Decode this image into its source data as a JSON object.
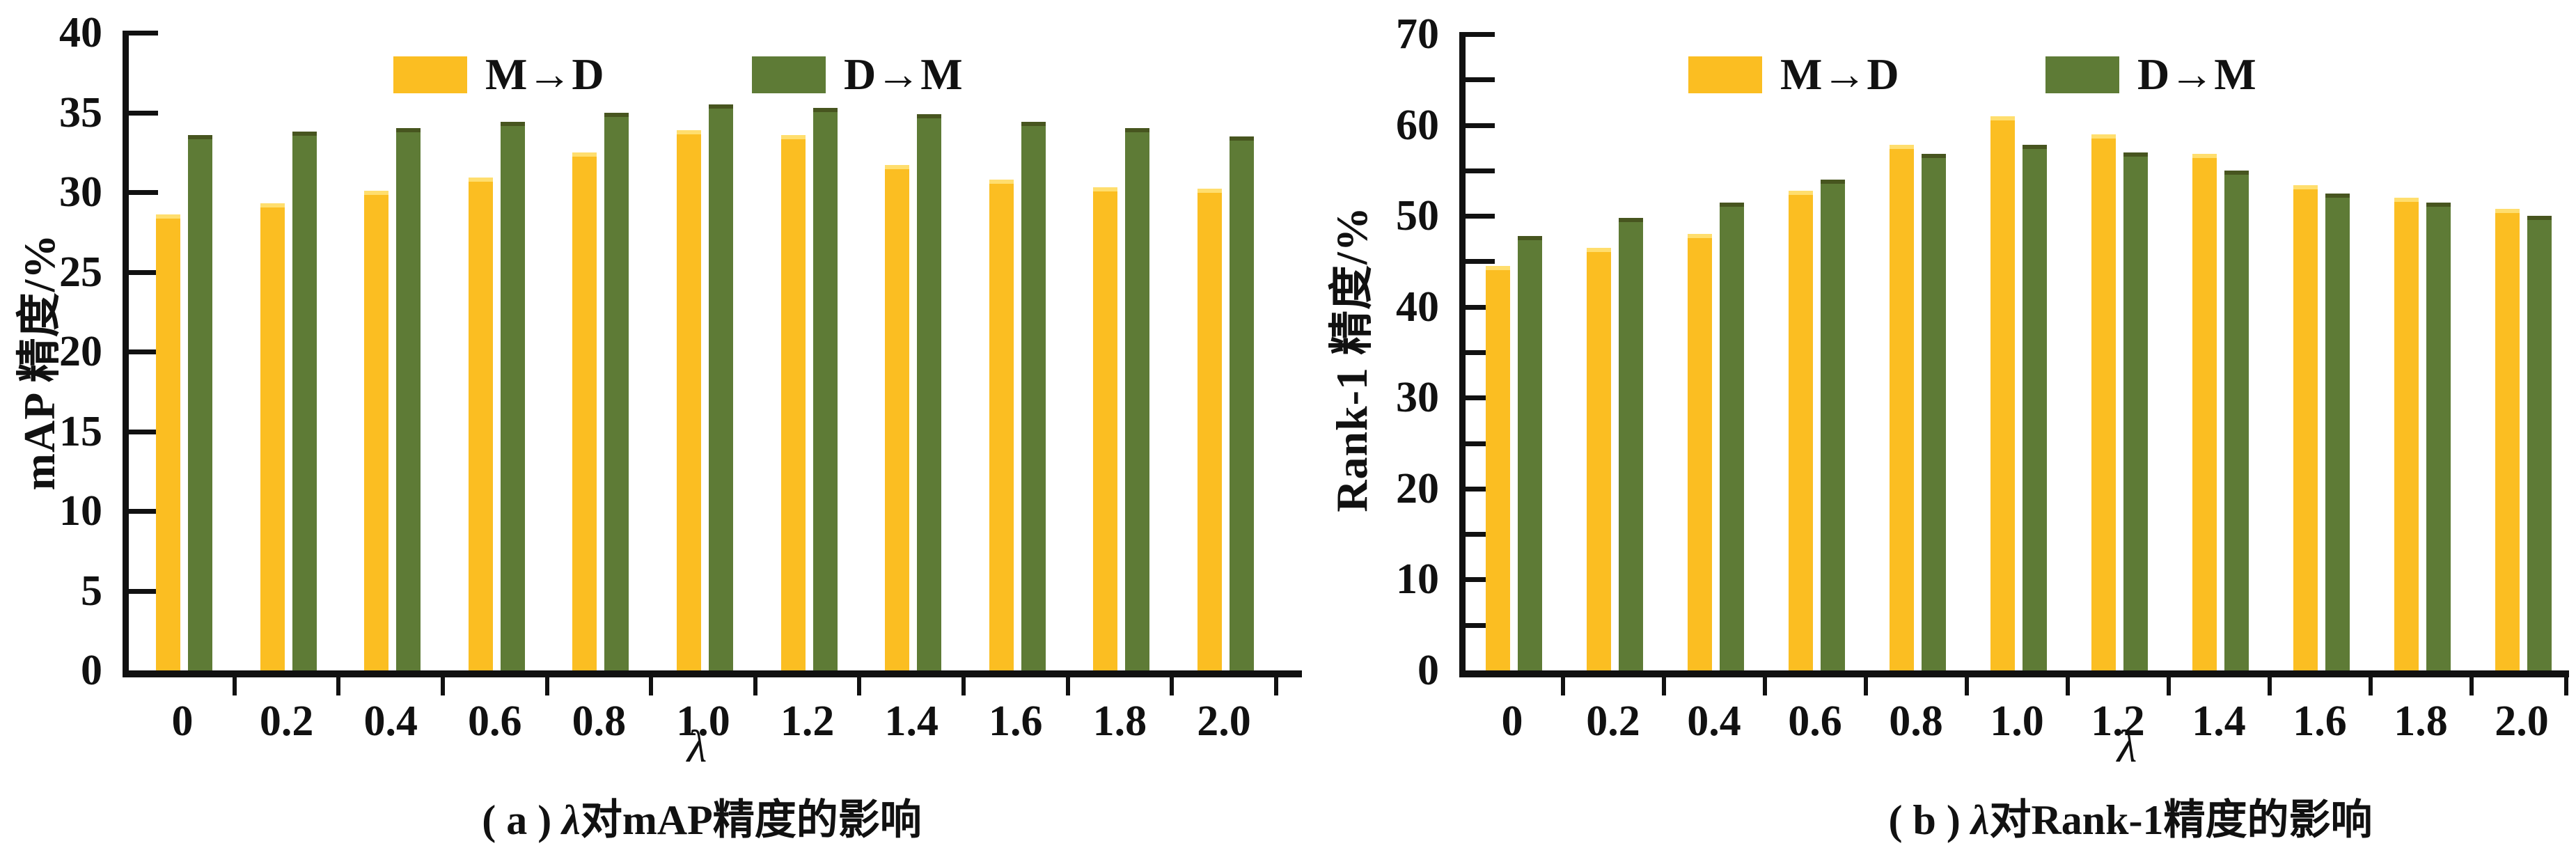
{
  "figure": {
    "background": "#ffffff",
    "text_color": "#111111",
    "series_colors": {
      "m_to_d": "#FBBE22",
      "d_to_m": "#5E7B36"
    },
    "series_edge_colors": {
      "m_to_d": "#FFDE6E",
      "d_to_m": "#47551F"
    }
  },
  "chart_data": [
    {
      "id": "a",
      "type": "bar",
      "caption_prefix": "( a ) ",
      "caption_lambda": "λ",
      "caption_rest": "对mAP精度的影响",
      "xlabel": "λ",
      "ylabel": "mAP 精度/%",
      "ylim": [
        0,
        40
      ],
      "ytick_step": 5,
      "ytick_label_every": 5,
      "grid": false,
      "legend_position": "top-center",
      "categories": [
        "0",
        "0.2",
        "0.4",
        "0.6",
        "0.8",
        "1.0",
        "1.2",
        "1.4",
        "1.6",
        "1.8",
        "2.0"
      ],
      "legend": [
        {
          "label": "M→D",
          "key": "m_to_d"
        },
        {
          "label": "D→M",
          "key": "d_to_m"
        }
      ],
      "series": [
        {
          "name": "M→D",
          "key": "m_to_d",
          "values": [
            28.6,
            29.3,
            30.1,
            30.9,
            32.5,
            33.9,
            33.6,
            31.7,
            30.8,
            30.3,
            30.2
          ]
        },
        {
          "name": "D→M",
          "key": "d_to_m",
          "values": [
            33.6,
            33.8,
            34.0,
            34.4,
            35.0,
            35.5,
            35.3,
            34.9,
            34.4,
            34.0,
            33.5
          ]
        }
      ]
    },
    {
      "id": "b",
      "type": "bar",
      "caption_prefix": "( b ) ",
      "caption_lambda": "λ",
      "caption_rest": "对Rank-1精度的影响",
      "xlabel": "λ",
      "ylabel": "Rank-1 精度/%",
      "ylim": [
        0,
        70
      ],
      "ytick_step": 5,
      "ytick_label_every": 10,
      "grid": false,
      "legend_position": "top-center",
      "categories": [
        "0",
        "0.2",
        "0.4",
        "0.6",
        "0.8",
        "1.0",
        "1.2",
        "1.4",
        "1.6",
        "1.8",
        "2.0"
      ],
      "legend": [
        {
          "label": "M→D",
          "key": "m_to_d"
        },
        {
          "label": "D→M",
          "key": "d_to_m"
        }
      ],
      "series": [
        {
          "name": "M→D",
          "key": "m_to_d",
          "values": [
            44.5,
            46.5,
            48.0,
            52.8,
            57.8,
            61.0,
            59.0,
            56.8,
            53.4,
            52.0,
            50.8
          ]
        },
        {
          "name": "D→M",
          "key": "d_to_m",
          "values": [
            47.8,
            49.8,
            51.5,
            54.0,
            56.8,
            57.8,
            57.0,
            55.0,
            52.5,
            51.5,
            50.0
          ]
        }
      ]
    }
  ]
}
